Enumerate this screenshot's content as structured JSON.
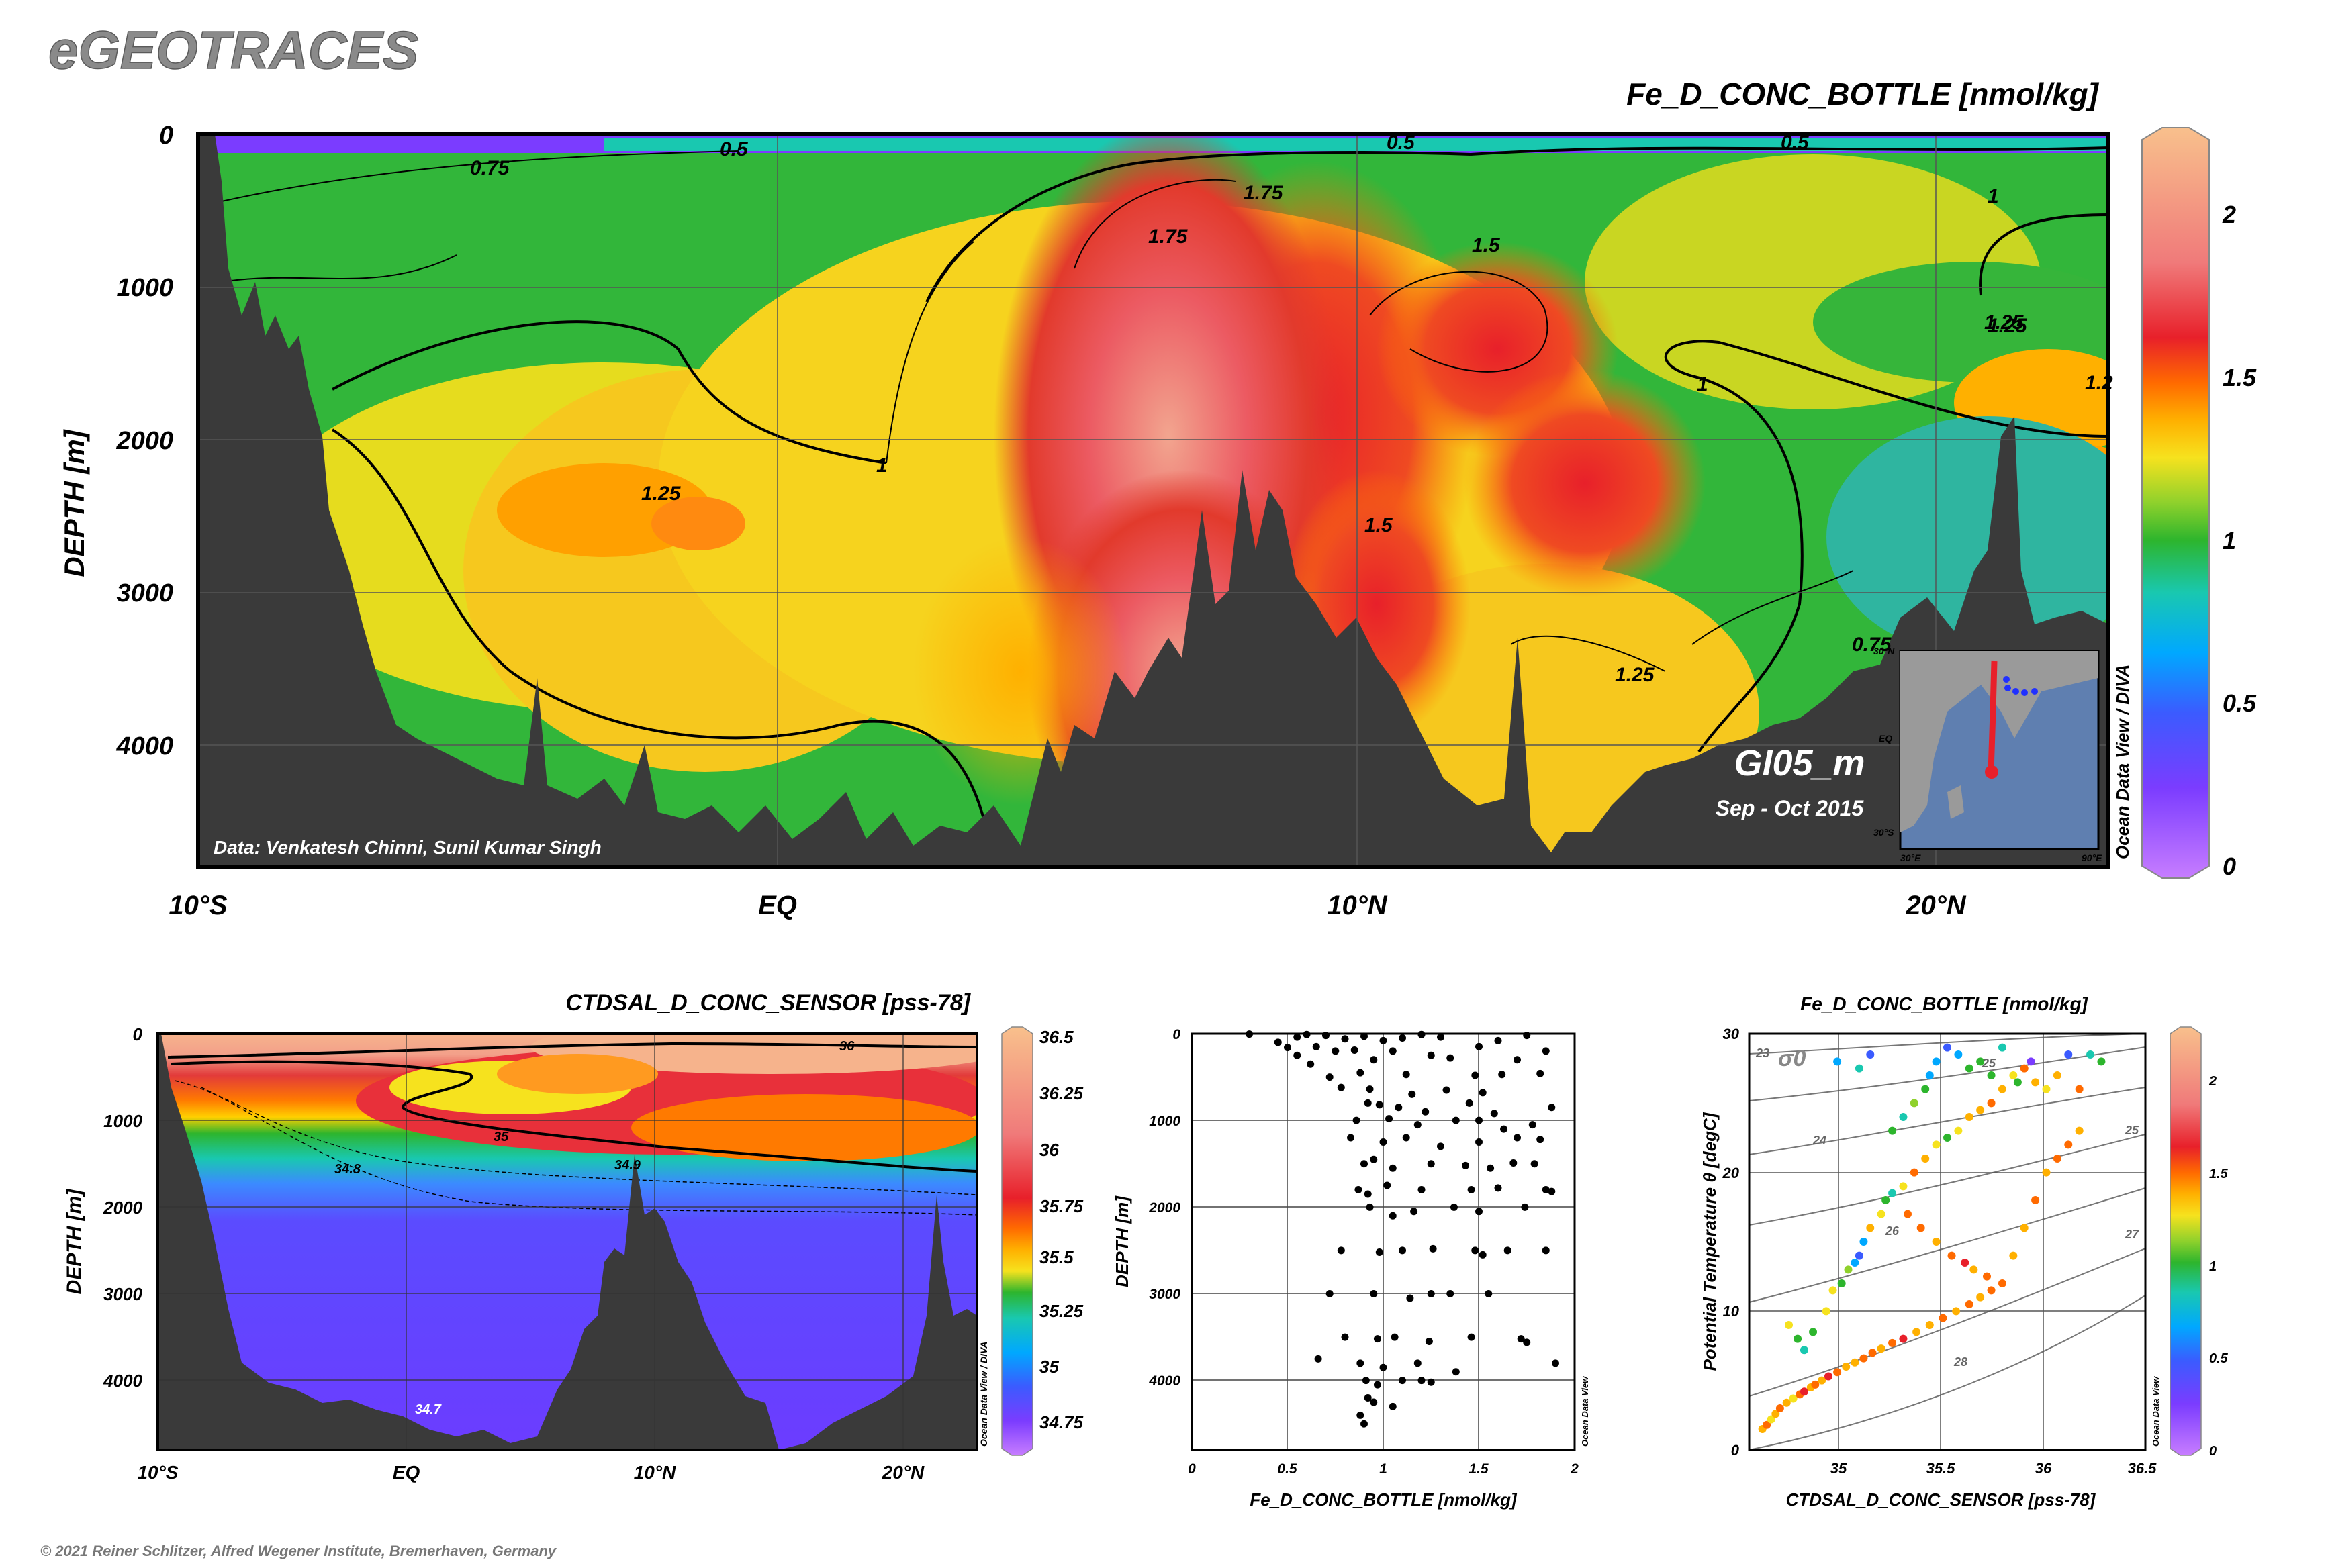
{
  "brand": "eGEOTRACES",
  "copyright": "© 2021 Reiner Schlitzer, Alfred Wegener Institute, Bremerhaven, Germany",
  "colors": {
    "land": "#3a3a3a",
    "colormap": [
      "#c77dff",
      "#7b3cff",
      "#3b5bff",
      "#00a8ff",
      "#19c8b0",
      "#2db52d",
      "#8fd12c",
      "#f6e21e",
      "#ffb000",
      "#ff6a00",
      "#e8202a",
      "#f07a7a",
      "#f8c08c"
    ]
  },
  "chart_data": [
    {
      "id": "main-section",
      "type": "heatmap",
      "title": "Fe_D_CONC_BOTTLE [nmol/kg]",
      "ylabel": "DEPTH [m]",
      "xlabel": "",
      "x_ticks": [
        "10°S",
        "EQ",
        "10°N",
        "20°N"
      ],
      "x_tick_values": [
        -10,
        0,
        10,
        20
      ],
      "xlim": [
        -10,
        23
      ],
      "y_ticks": [
        "0",
        "1000",
        "2000",
        "3000",
        "4000"
      ],
      "ylim": [
        0,
        4800
      ],
      "colorbar": {
        "ticks": [
          "0",
          "0.5",
          "1",
          "1.5",
          "2"
        ],
        "range": [
          0,
          2.2
        ]
      },
      "contour_labels": [
        "0.75",
        "0.5",
        "0.5",
        "0.5",
        "1.75",
        "1.75",
        "1.5",
        "1",
        "1",
        "1.25",
        "1.25",
        "1.2",
        "1.25",
        "1.5",
        "1",
        "1.25",
        "0.75"
      ],
      "annotations": {
        "data_credit": "Data: Venkatesh Chinni, Sunil Kumar Singh",
        "section_name": "GI05_m",
        "date": "Sep - Oct 2015",
        "software": "Ocean Data View / DIVA",
        "inset_labels": [
          "30°N",
          "EQ",
          "30°S",
          "30°E",
          "90°E"
        ]
      }
    },
    {
      "id": "salinity-section",
      "type": "heatmap",
      "title": "CTDSAL_D_CONC_SENSOR [pss-78]",
      "ylabel": "DEPTH [m]",
      "xlabel": "",
      "x_ticks": [
        "10°S",
        "EQ",
        "10°N",
        "20°N"
      ],
      "x_tick_values": [
        -10,
        0,
        10,
        20
      ],
      "xlim": [
        -10,
        23
      ],
      "y_ticks": [
        "0",
        "1000",
        "2000",
        "3000",
        "4000"
      ],
      "ylim": [
        0,
        4800
      ],
      "colorbar": {
        "ticks": [
          "36.5",
          "36.25",
          "36",
          "35.75",
          "35.5",
          "35.25",
          "35",
          "34.75"
        ],
        "range": [
          34.65,
          36.55
        ]
      },
      "contour_labels": [
        "36",
        "35",
        "34.9",
        "34.8",
        "34.7"
      ],
      "software": "Ocean Data View / DIVA"
    },
    {
      "id": "fe-profile",
      "type": "scatter",
      "title": "",
      "xlabel": "Fe_D_CONC_BOTTLE [nmol/kg]",
      "ylabel": "DEPTH [m]",
      "xlim": [
        0,
        2
      ],
      "ylim": [
        0,
        4800
      ],
      "x_ticks": [
        "0",
        "0.5",
        "1",
        "1.5",
        "2"
      ],
      "y_ticks": [
        "0",
        "1000",
        "2000",
        "3000",
        "4000"
      ],
      "software": "Ocean Data View",
      "points": [
        [
          0.6,
          10
        ],
        [
          0.55,
          40
        ],
        [
          0.7,
          20
        ],
        [
          0.45,
          100
        ],
        [
          0.8,
          60
        ],
        [
          0.3,
          5
        ],
        [
          0.9,
          30
        ],
        [
          1.0,
          80
        ],
        [
          1.1,
          50
        ],
        [
          1.2,
          10
        ],
        [
          1.3,
          40
        ],
        [
          1.6,
          80
        ],
        [
          1.75,
          20
        ],
        [
          0.5,
          160
        ],
        [
          0.65,
          150
        ],
        [
          0.75,
          200
        ],
        [
          0.85,
          190
        ],
        [
          1.05,
          200
        ],
        [
          1.25,
          250
        ],
        [
          1.35,
          280
        ],
        [
          1.5,
          150
        ],
        [
          1.7,
          300
        ],
        [
          1.85,
          200
        ],
        [
          0.95,
          300
        ],
        [
          0.55,
          250
        ],
        [
          0.62,
          350
        ],
        [
          0.72,
          500
        ],
        [
          0.88,
          450
        ],
        [
          1.12,
          470
        ],
        [
          1.48,
          480
        ],
        [
          1.62,
          470
        ],
        [
          1.82,
          460
        ],
        [
          0.78,
          620
        ],
        [
          0.93,
          640
        ],
        [
          1.15,
          700
        ],
        [
          1.33,
          650
        ],
        [
          1.52,
          680
        ],
        [
          0.92,
          800
        ],
        [
          0.98,
          820
        ],
        [
          1.08,
          850
        ],
        [
          1.22,
          900
        ],
        [
          1.45,
          800
        ],
        [
          1.58,
          920
        ],
        [
          1.88,
          850
        ],
        [
          0.86,
          1000
        ],
        [
          1.03,
          980
        ],
        [
          1.18,
          1050
        ],
        [
          1.38,
          1000
        ],
        [
          1.5,
          1000
        ],
        [
          1.63,
          1100
        ],
        [
          1.78,
          1050
        ],
        [
          0.83,
          1200
        ],
        [
          1.0,
          1250
        ],
        [
          1.12,
          1200
        ],
        [
          1.3,
          1300
        ],
        [
          1.5,
          1250
        ],
        [
          1.7,
          1200
        ],
        [
          1.82,
          1220
        ],
        [
          0.9,
          1500
        ],
        [
          0.95,
          1450
        ],
        [
          1.05,
          1550
        ],
        [
          1.25,
          1500
        ],
        [
          1.43,
          1520
        ],
        [
          1.56,
          1550
        ],
        [
          1.68,
          1490
        ],
        [
          1.79,
          1500
        ],
        [
          0.87,
          1800
        ],
        [
          0.92,
          1850
        ],
        [
          1.02,
          1750
        ],
        [
          1.2,
          1800
        ],
        [
          1.46,
          1800
        ],
        [
          1.6,
          1780
        ],
        [
          1.85,
          1800
        ],
        [
          1.88,
          1820
        ],
        [
          0.93,
          2000
        ],
        [
          1.05,
          2100
        ],
        [
          1.16,
          2050
        ],
        [
          1.37,
          2000
        ],
        [
          1.5,
          2050
        ],
        [
          1.74,
          2000
        ],
        [
          0.78,
          2500
        ],
        [
          0.98,
          2520
        ],
        [
          1.1,
          2500
        ],
        [
          1.26,
          2480
        ],
        [
          1.48,
          2500
        ],
        [
          1.52,
          2550
        ],
        [
          1.65,
          2500
        ],
        [
          1.85,
          2500
        ],
        [
          0.72,
          3000
        ],
        [
          0.95,
          3000
        ],
        [
          1.14,
          3050
        ],
        [
          1.25,
          3000
        ],
        [
          1.35,
          3000
        ],
        [
          1.55,
          3000
        ],
        [
          0.8,
          3500
        ],
        [
          0.97,
          3520
        ],
        [
          1.06,
          3500
        ],
        [
          1.24,
          3550
        ],
        [
          1.46,
          3500
        ],
        [
          1.72,
          3520
        ],
        [
          1.75,
          3560
        ],
        [
          0.66,
          3750
        ],
        [
          0.88,
          3800
        ],
        [
          1.0,
          3850
        ],
        [
          1.18,
          3800
        ],
        [
          1.38,
          3900
        ],
        [
          1.9,
          3800
        ],
        [
          0.91,
          4000
        ],
        [
          0.97,
          4050
        ],
        [
          1.1,
          4000
        ],
        [
          1.2,
          4000
        ],
        [
          1.25,
          4020
        ],
        [
          0.92,
          4200
        ],
        [
          0.95,
          4250
        ],
        [
          1.05,
          4300
        ],
        [
          0.88,
          4400
        ],
        [
          0.9,
          4500
        ]
      ]
    },
    {
      "id": "ts-plot",
      "type": "scatter",
      "title": "Fe_D_CONC_BOTTLE [nmol/kg]",
      "xlabel": "CTDSAL_D_CONC_SENSOR [pss-78]",
      "ylabel": "Potential Temperature θ [degC]",
      "xlim": [
        34.7,
        36.5
      ],
      "ylim": [
        0,
        30
      ],
      "x_ticks": [
        "35",
        "35.5",
        "36",
        "36.5"
      ],
      "y_ticks": [
        "0",
        "10",
        "20",
        "30"
      ],
      "density_label": "σ0",
      "isopycnal_labels": [
        "23",
        "24",
        "25",
        "25",
        "26",
        "27",
        "28"
      ],
      "colorbar": {
        "ticks": [
          "0",
          "0.5",
          "1",
          "1.5",
          "2"
        ],
        "range": [
          0,
          2.2
        ]
      },
      "software": "Ocean Data View",
      "points": [
        [
          34.76,
          1.5,
          1.5
        ],
        [
          34.78,
          1.8,
          1.6
        ],
        [
          34.8,
          2.2,
          1.2
        ],
        [
          34.82,
          2.6,
          1.4
        ],
        [
          34.84,
          3.0,
          1.6
        ],
        [
          34.87,
          3.4,
          1.5
        ],
        [
          34.9,
          3.7,
          1.3
        ],
        [
          34.93,
          4.0,
          1.7
        ],
        [
          34.95,
          4.2,
          1.9
        ],
        [
          34.98,
          4.5,
          1.4
        ],
        [
          35.0,
          4.7,
          1.6
        ],
        [
          35.03,
          5.0,
          1.5
        ],
        [
          35.06,
          5.3,
          1.8
        ],
        [
          35.1,
          5.6,
          1.7
        ],
        [
          35.14,
          6.0,
          1.5
        ],
        [
          35.18,
          6.3,
          1.4
        ],
        [
          35.22,
          6.6,
          1.6
        ],
        [
          35.26,
          7.0,
          1.7
        ],
        [
          35.3,
          7.3,
          1.5
        ],
        [
          35.35,
          7.7,
          1.6
        ],
        [
          35.4,
          8.0,
          1.8
        ],
        [
          35.46,
          8.5,
          1.5
        ],
        [
          35.52,
          9.0,
          1.4
        ],
        [
          35.58,
          9.5,
          1.6
        ],
        [
          35.64,
          10.0,
          1.5
        ],
        [
          35.7,
          10.5,
          1.7
        ],
        [
          35.75,
          11.0,
          1.5
        ],
        [
          35.8,
          11.5,
          1.6
        ],
        [
          34.88,
          9.0,
          1.2
        ],
        [
          34.92,
          8.0,
          1.0
        ],
        [
          34.95,
          7.2,
          0.7
        ],
        [
          34.99,
          8.5,
          0.9
        ],
        [
          35.05,
          10.0,
          1.2
        ],
        [
          35.08,
          11.5,
          1.3
        ],
        [
          35.12,
          12.0,
          0.95
        ],
        [
          35.15,
          13.0,
          1.1
        ],
        [
          35.18,
          13.5,
          0.6
        ],
        [
          35.2,
          14.0,
          0.4
        ],
        [
          35.22,
          15.0,
          0.55
        ],
        [
          35.25,
          16.0,
          1.4
        ],
        [
          35.3,
          17.0,
          1.2
        ],
        [
          35.32,
          18.0,
          0.9
        ],
        [
          35.35,
          18.5,
          0.7
        ],
        [
          35.4,
          19.0,
          1.3
        ],
        [
          35.45,
          20.0,
          1.6
        ],
        [
          35.5,
          21.0,
          1.5
        ],
        [
          35.55,
          22.0,
          1.2
        ],
        [
          35.6,
          22.5,
          1.0
        ],
        [
          35.65,
          23.0,
          1.3
        ],
        [
          35.7,
          24.0,
          1.5
        ],
        [
          35.75,
          24.5,
          1.4
        ],
        [
          35.8,
          25.0,
          1.7
        ],
        [
          35.85,
          26.0,
          1.5
        ],
        [
          35.9,
          27.0,
          1.3
        ],
        [
          35.95,
          27.5,
          1.6
        ],
        [
          36.0,
          26.5,
          1.4
        ],
        [
          36.05,
          26.0,
          1.2
        ],
        [
          36.1,
          27.0,
          1.5
        ],
        [
          36.2,
          26.0,
          1.6
        ],
        [
          35.42,
          17.0,
          1.6
        ],
        [
          35.48,
          16.0,
          1.7
        ],
        [
          35.55,
          15.0,
          1.5
        ],
        [
          35.62,
          14.0,
          1.6
        ],
        [
          35.68,
          13.5,
          1.8
        ],
        [
          35.72,
          13.0,
          1.5
        ],
        [
          35.78,
          12.5,
          1.6
        ],
        [
          35.85,
          12.0,
          1.7
        ],
        [
          35.9,
          14.0,
          1.5
        ],
        [
          35.95,
          16.0,
          1.4
        ],
        [
          36.0,
          18.0,
          1.6
        ],
        [
          36.05,
          20.0,
          1.5
        ],
        [
          36.1,
          21.0,
          1.7
        ],
        [
          36.15,
          22.0,
          1.6
        ],
        [
          36.2,
          23.0,
          1.5
        ],
        [
          35.35,
          23.0,
          0.9
        ],
        [
          35.4,
          24.0,
          0.8
        ],
        [
          35.45,
          25.0,
          1.1
        ],
        [
          35.5,
          26.0,
          0.95
        ],
        [
          35.52,
          27.0,
          0.6
        ],
        [
          35.55,
          28.0,
          0.5
        ],
        [
          35.6,
          29.0,
          0.45
        ],
        [
          35.65,
          28.5,
          0.55
        ],
        [
          35.7,
          27.5,
          0.9
        ],
        [
          35.75,
          28.0,
          0.85
        ],
        [
          35.8,
          27.0,
          1.0
        ],
        [
          35.85,
          29.0,
          0.7
        ],
        [
          36.25,
          28.5,
          0.8
        ],
        [
          36.3,
          28.0,
          0.85
        ],
        [
          35.1,
          28.0,
          0.6
        ],
        [
          35.2,
          27.5,
          0.75
        ],
        [
          35.25,
          28.5,
          0.35
        ],
        [
          35.92,
          26.5,
          0.95
        ],
        [
          35.98,
          28.0,
          0.2
        ],
        [
          36.15,
          28.5,
          0.3
        ]
      ]
    }
  ]
}
